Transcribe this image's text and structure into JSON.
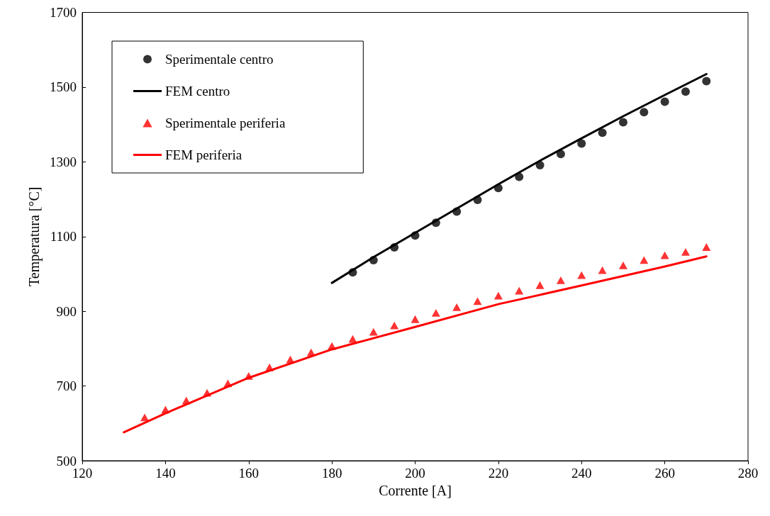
{
  "chart_data": {
    "type": "scatter",
    "xlabel": "Corrente [A]",
    "ylabel": "Temperatura [°C]",
    "xlim": [
      120,
      280
    ],
    "xticks": [
      120,
      140,
      160,
      180,
      200,
      220,
      240,
      260,
      280
    ],
    "ylim": [
      500,
      1700
    ],
    "yticks": [
      500,
      700,
      900,
      1100,
      1300,
      1500,
      1700
    ],
    "grid": false,
    "legend": "top left",
    "series": [
      {
        "name": "Sperimentale centro",
        "marker": "circle",
        "color": "#000000",
        "x": [
          185,
          190,
          195,
          200,
          205,
          210,
          215,
          220,
          225,
          230,
          235,
          240,
          245,
          250,
          255,
          260,
          265,
          270
        ],
        "values": [
          1004,
          1037,
          1071,
          1103,
          1137,
          1167,
          1198,
          1230,
          1260,
          1291,
          1321,
          1349,
          1378,
          1406,
          1433,
          1461,
          1488,
          1516
        ]
      },
      {
        "name": "FEM centro",
        "type": "line",
        "marker": "none",
        "line_style": "solid",
        "color": "#000000",
        "x": [
          180,
          190,
          200,
          210,
          220,
          230,
          240,
          250,
          260,
          270
        ],
        "values": [
          976,
          1045,
          1110,
          1175,
          1240,
          1303,
          1363,
          1422,
          1479,
          1535
        ]
      },
      {
        "name": "Sperimentale periferia",
        "marker": "triangle",
        "color": "#ff0000",
        "x": [
          135,
          140,
          145,
          150,
          155,
          160,
          165,
          170,
          175,
          180,
          185,
          190,
          195,
          200,
          205,
          210,
          215,
          220,
          225,
          230,
          235,
          240,
          245,
          250,
          255,
          260,
          265,
          270
        ],
        "values": [
          616,
          637,
          661,
          682,
          707,
          727,
          750,
          771,
          790,
          807,
          826,
          845,
          862,
          879,
          896,
          911,
          927,
          942,
          955,
          970,
          983,
          997,
          1010,
          1023,
          1037,
          1050,
          1059,
          1072
        ]
      },
      {
        "name": "FEM periferia",
        "type": "line",
        "marker": "none",
        "line_style": "solid",
        "color": "#ff0000",
        "x": [
          130,
          140,
          160,
          180,
          200,
          220,
          240,
          260,
          270
        ],
        "values": [
          576,
          627,
          722,
          798,
          858,
          919,
          969,
          1020,
          1047
        ]
      }
    ]
  }
}
